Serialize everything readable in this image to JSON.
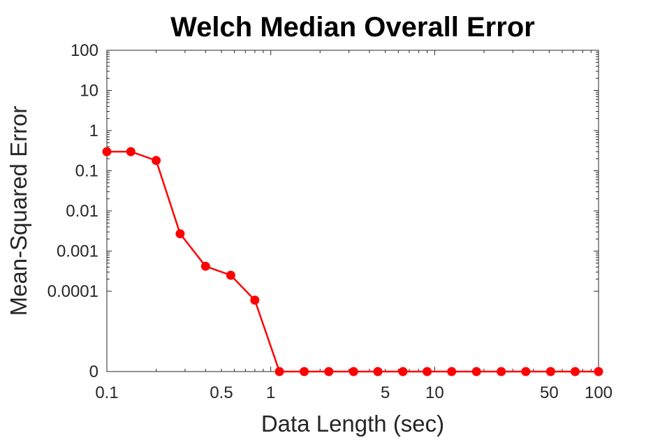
{
  "chart_data": {
    "type": "line",
    "title": "Welch Median Overall Error",
    "xlabel": "Data Length (sec)",
    "ylabel": "Mean-Squared Error",
    "x_scale": "log",
    "y_scale": "symlog",
    "xlim": [
      0.1,
      100
    ],
    "x_ticks": [
      {
        "value": 0.1,
        "label": "0.1"
      },
      {
        "value": 0.5,
        "label": "0.5"
      },
      {
        "value": 1,
        "label": "1"
      },
      {
        "value": 5,
        "label": "5"
      },
      {
        "value": 10,
        "label": "10"
      },
      {
        "value": 50,
        "label": "50"
      },
      {
        "value": 100,
        "label": "100"
      }
    ],
    "y_ticks": [
      {
        "value": 0,
        "label": "0"
      },
      {
        "value": 0.0001,
        "label": "0.0001"
      },
      {
        "value": 0.001,
        "label": "0.001"
      },
      {
        "value": 0.01,
        "label": "0.01"
      },
      {
        "value": 0.1,
        "label": "0.1"
      },
      {
        "value": 1,
        "label": "1"
      },
      {
        "value": 10,
        "label": "10"
      },
      {
        "value": 100,
        "label": "100"
      }
    ],
    "grid": false,
    "series": [
      {
        "color": "#ff0000",
        "x": [
          0.1,
          0.14,
          0.2,
          0.28,
          0.4,
          0.57,
          0.8,
          1.13,
          1.6,
          2.26,
          3.2,
          4.5,
          6.4,
          9.0,
          12.7,
          18,
          25.5,
          36,
          51,
          72,
          100
        ],
        "y": [
          0.3,
          0.3,
          0.18,
          0.0027,
          0.00042,
          0.00025,
          6e-05,
          0,
          0,
          0,
          0,
          0,
          0,
          0,
          0,
          0,
          0,
          0,
          0,
          0,
          0
        ]
      }
    ]
  }
}
